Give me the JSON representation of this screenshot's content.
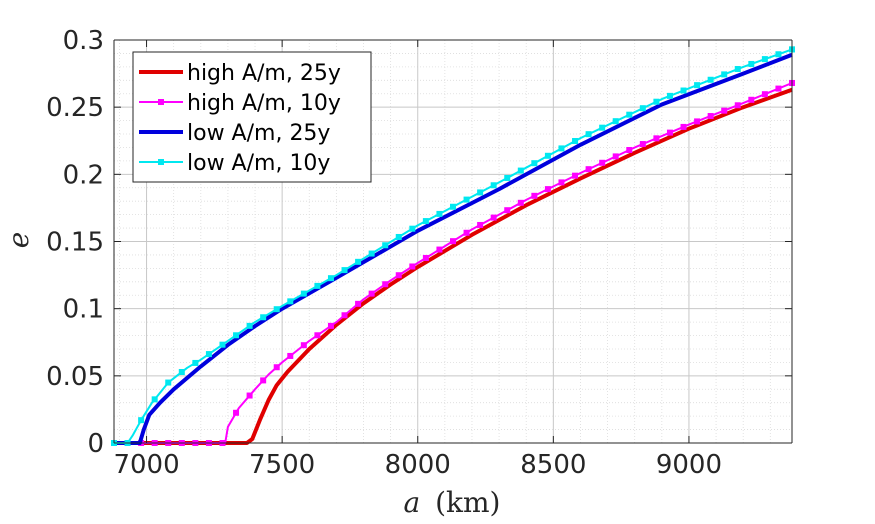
{
  "chart_data": {
    "type": "line",
    "title": "",
    "xlabel_var": "a",
    "xlabel_unit": "(km)",
    "ylabel": "e",
    "xlim": [
      6880,
      9380
    ],
    "ylim": [
      0,
      0.3
    ],
    "xticks": [
      7000,
      7500,
      8000,
      8500,
      9000
    ],
    "xtick_labels": [
      "7000",
      "7500",
      "8000",
      "8500",
      "9000"
    ],
    "yticks": [
      0,
      0.05,
      0.1,
      0.15,
      0.2,
      0.25,
      0.3
    ],
    "ytick_labels": [
      "0",
      "0.05",
      "0.1",
      "0.15",
      "0.2",
      "0.25",
      "0.3"
    ],
    "grid": true,
    "minor_grid": true,
    "legend_position": "top-left",
    "series": [
      {
        "name": "high A/m, 25y",
        "color": "#e00000",
        "marker": "none",
        "points": [
          [
            6880,
            0
          ],
          [
            7370,
            0
          ],
          [
            7390,
            0.003
          ],
          [
            7420,
            0.018
          ],
          [
            7450,
            0.032
          ],
          [
            7480,
            0.043
          ],
          [
            7520,
            0.053
          ],
          [
            7600,
            0.07
          ],
          [
            7700,
            0.088
          ],
          [
            7800,
            0.104
          ],
          [
            7900,
            0.118
          ],
          [
            8000,
            0.131
          ],
          [
            8200,
            0.155
          ],
          [
            8400,
            0.177
          ],
          [
            8600,
            0.197
          ],
          [
            8800,
            0.216
          ],
          [
            9000,
            0.234
          ],
          [
            9200,
            0.25
          ],
          [
            9380,
            0.263
          ]
        ]
      },
      {
        "name": "high A/m, 10y",
        "color": "#ff00ff",
        "marker": "square",
        "points": [
          [
            6880,
            0
          ],
          [
            7290,
            0
          ],
          [
            7300,
            0.012
          ],
          [
            7340,
            0.026
          ],
          [
            7400,
            0.04
          ],
          [
            7450,
            0.051
          ],
          [
            7500,
            0.06
          ],
          [
            7600,
            0.076
          ],
          [
            7700,
            0.09
          ],
          [
            7800,
            0.107
          ],
          [
            7900,
            0.121
          ],
          [
            8000,
            0.134
          ],
          [
            8200,
            0.159
          ],
          [
            8400,
            0.181
          ],
          [
            8600,
            0.201
          ],
          [
            8800,
            0.22
          ],
          [
            9000,
            0.237
          ],
          [
            9200,
            0.253
          ],
          [
            9380,
            0.268
          ]
        ]
      },
      {
        "name": "low A/m, 25y",
        "color": "#0000dd",
        "marker": "none",
        "points": [
          [
            6880,
            0
          ],
          [
            6975,
            0
          ],
          [
            6990,
            0.01
          ],
          [
            7010,
            0.021
          ],
          [
            7050,
            0.03
          ],
          [
            7100,
            0.04
          ],
          [
            7200,
            0.057
          ],
          [
            7300,
            0.073
          ],
          [
            7400,
            0.087
          ],
          [
            7500,
            0.1
          ],
          [
            7700,
            0.123
          ],
          [
            8000,
            0.158
          ],
          [
            8300,
            0.189
          ],
          [
            8600,
            0.222
          ],
          [
            8900,
            0.252
          ],
          [
            9200,
            0.275
          ],
          [
            9380,
            0.289
          ]
        ]
      },
      {
        "name": "low A/m, 10y",
        "color": "#00e8f0",
        "marker": "square",
        "points": [
          [
            6880,
            0
          ],
          [
            6930,
            0
          ],
          [
            6950,
            0.006
          ],
          [
            6980,
            0.017
          ],
          [
            7020,
            0.03
          ],
          [
            7080,
            0.045
          ],
          [
            7150,
            0.056
          ],
          [
            7200,
            0.062
          ],
          [
            7300,
            0.076
          ],
          [
            7400,
            0.09
          ],
          [
            7500,
            0.102
          ],
          [
            7700,
            0.125
          ],
          [
            8000,
            0.162
          ],
          [
            8300,
            0.194
          ],
          [
            8600,
            0.227
          ],
          [
            8900,
            0.256
          ],
          [
            9200,
            0.28
          ],
          [
            9380,
            0.293
          ]
        ]
      }
    ]
  }
}
